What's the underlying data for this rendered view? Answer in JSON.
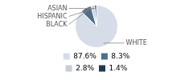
{
  "chart_data": {
    "type": "pie",
    "categories": [
      "WHITE",
      "BLACK",
      "HISPANIC",
      "ASIAN"
    ],
    "values": [
      87.6,
      8.3,
      2.8,
      1.4
    ],
    "value_labels": [
      "87.6%",
      "8.3%",
      "2.8%",
      "1.4%"
    ],
    "colors": [
      "#d6dde8",
      "#4d6f8a",
      "#c5cdd8",
      "#1e3a52"
    ],
    "legend": "bottom"
  }
}
